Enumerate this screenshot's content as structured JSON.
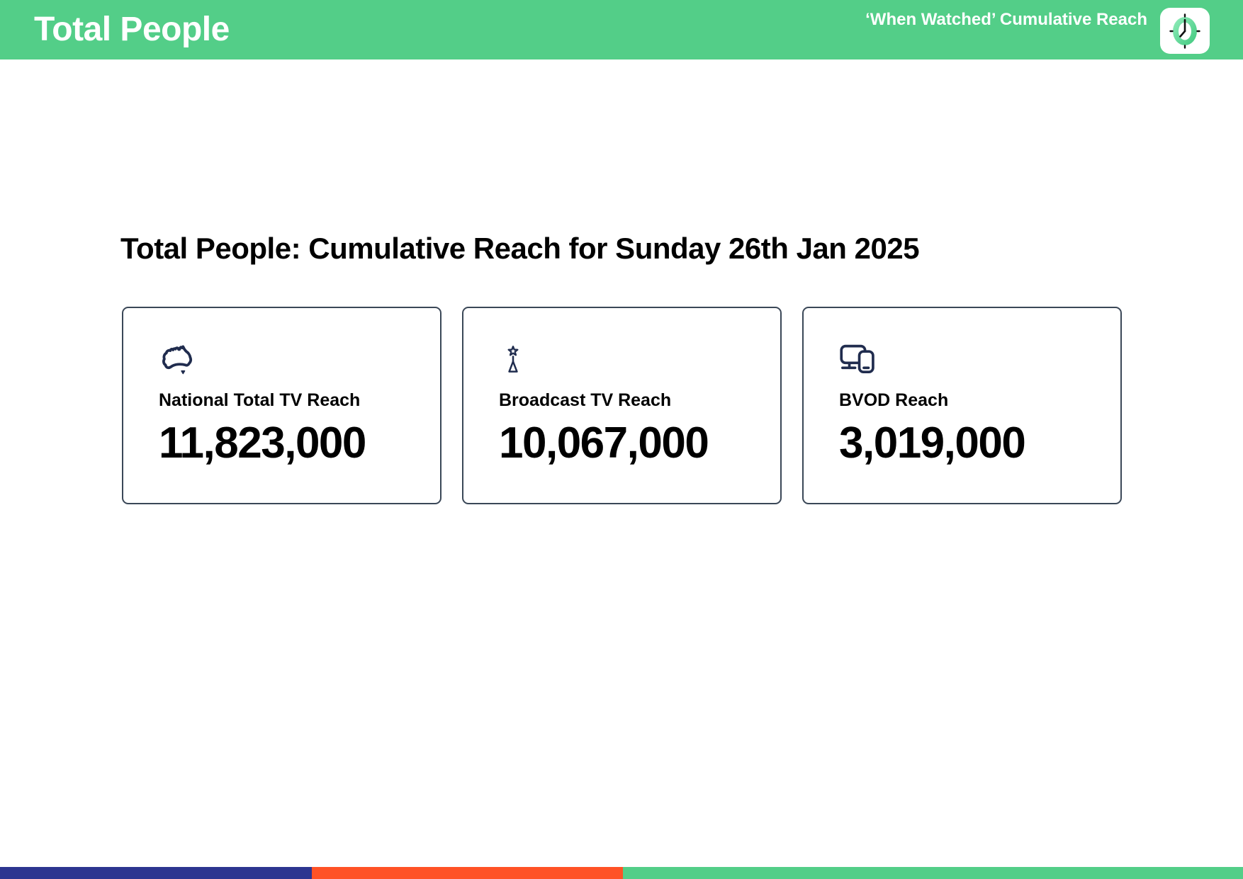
{
  "header": {
    "title": "Total People",
    "right_label": "‘When Watched’ Cumulative Reach",
    "clock_icon": "clock-icon"
  },
  "main": {
    "heading": "Total People: Cumulative Reach for Sunday 26th Jan 2025",
    "cards": [
      {
        "icon": "australia-map-icon",
        "label": "National Total TV Reach",
        "value": "11,823,000"
      },
      {
        "icon": "broadcast-tower-icon",
        "label": "Broadcast TV Reach",
        "value": "10,067,000"
      },
      {
        "icon": "devices-icon",
        "label": "BVOD Reach",
        "value": "3,019,000"
      }
    ]
  },
  "footer": {
    "segments": [
      {
        "name": "navy",
        "color": "#2D3590",
        "width_pct": 25.1
      },
      {
        "name": "orange",
        "color": "#FF5226",
        "width_pct": 25.0
      },
      {
        "name": "green",
        "color": "#53CE88",
        "width_pct": 49.9
      }
    ]
  },
  "colors": {
    "brand_green": "#53CE88",
    "icon_navy": "#202C4E",
    "card_border": "#3A4757",
    "footer_navy": "#2D3590",
    "footer_orange": "#FF5226",
    "text_black": "#000000",
    "header_text": "#FFFFFF"
  }
}
